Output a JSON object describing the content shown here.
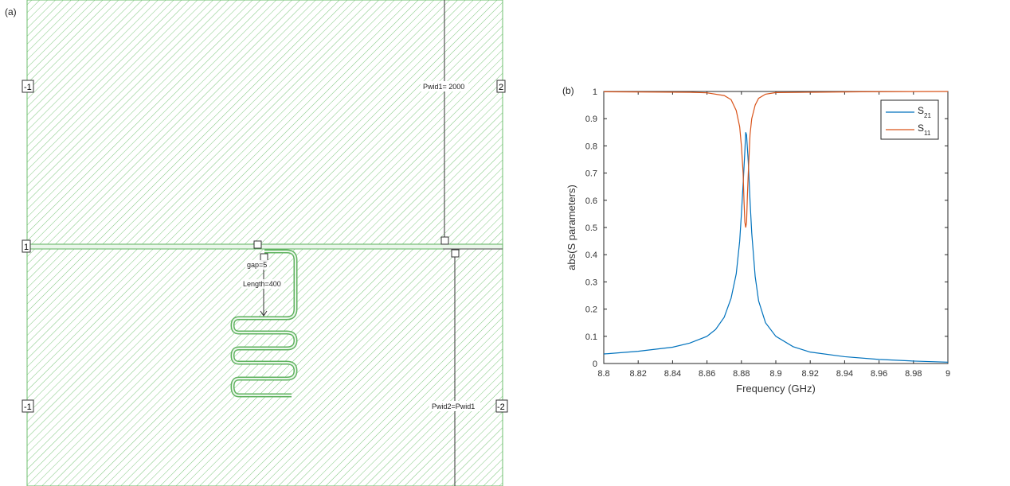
{
  "panel_a": {
    "label": "(a)",
    "ports": {
      "port1_left": "1",
      "port1_right": "2",
      "port_top_left": "-1",
      "port_bottom_left": "-1",
      "port_bottom_right": "-2"
    },
    "annotations": {
      "pwid1": "Pwid1= 2000",
      "pwid2": "Pwid2=Pwid1",
      "gap": "gap=5",
      "length": "Length=400"
    },
    "colors": {
      "substrate_hatch": "#6dbf6d",
      "trace": "#5fb35f"
    }
  },
  "panel_b": {
    "label": "(b)"
  },
  "chart_data": {
    "type": "line",
    "title": "",
    "xlabel": "Frequency (GHz)",
    "ylabel": "abs(S parameters)",
    "xlim": [
      8.8,
      9.0
    ],
    "ylim": [
      0,
      1
    ],
    "grid": false,
    "legend_position": "top-right",
    "x_ticks": [
      "8.8",
      "8.82",
      "8.84",
      "8.86",
      "8.88",
      "8.9",
      "8.92",
      "8.94",
      "8.96",
      "8.98",
      "9"
    ],
    "y_ticks": [
      "0",
      "0.1",
      "0.2",
      "0.3",
      "0.4",
      "0.5",
      "0.6",
      "0.7",
      "0.8",
      "0.9",
      "1"
    ],
    "series": [
      {
        "name": "S21",
        "legend_main": "S",
        "legend_sub": "21",
        "color": "#0072bd",
        "x": [
          8.8,
          8.82,
          8.84,
          8.85,
          8.86,
          8.865,
          8.87,
          8.874,
          8.877,
          8.879,
          8.88,
          8.881,
          8.882,
          8.8825,
          8.883,
          8.884,
          8.885,
          8.886,
          8.888,
          8.89,
          8.894,
          8.9,
          8.91,
          8.92,
          8.94,
          8.96,
          8.98,
          9.0
        ],
        "y": [
          0.035,
          0.045,
          0.06,
          0.075,
          0.1,
          0.125,
          0.17,
          0.24,
          0.33,
          0.45,
          0.55,
          0.66,
          0.78,
          0.85,
          0.84,
          0.74,
          0.6,
          0.48,
          0.32,
          0.23,
          0.15,
          0.1,
          0.062,
          0.042,
          0.025,
          0.015,
          0.009,
          0.005
        ]
      },
      {
        "name": "S11",
        "legend_main": "S",
        "legend_sub": "11",
        "color": "#d95319",
        "x": [
          8.8,
          8.85,
          8.86,
          8.87,
          8.874,
          8.877,
          8.879,
          8.88,
          8.881,
          8.8815,
          8.882,
          8.8825,
          8.883,
          8.8835,
          8.884,
          8.885,
          8.886,
          8.888,
          8.89,
          8.894,
          8.9,
          8.95,
          9.0
        ],
        "y": [
          0.999,
          0.997,
          0.995,
          0.985,
          0.97,
          0.93,
          0.87,
          0.8,
          0.7,
          0.6,
          0.52,
          0.5,
          0.52,
          0.62,
          0.7,
          0.84,
          0.9,
          0.95,
          0.975,
          0.99,
          0.996,
          0.999,
          1.0
        ]
      }
    ]
  }
}
